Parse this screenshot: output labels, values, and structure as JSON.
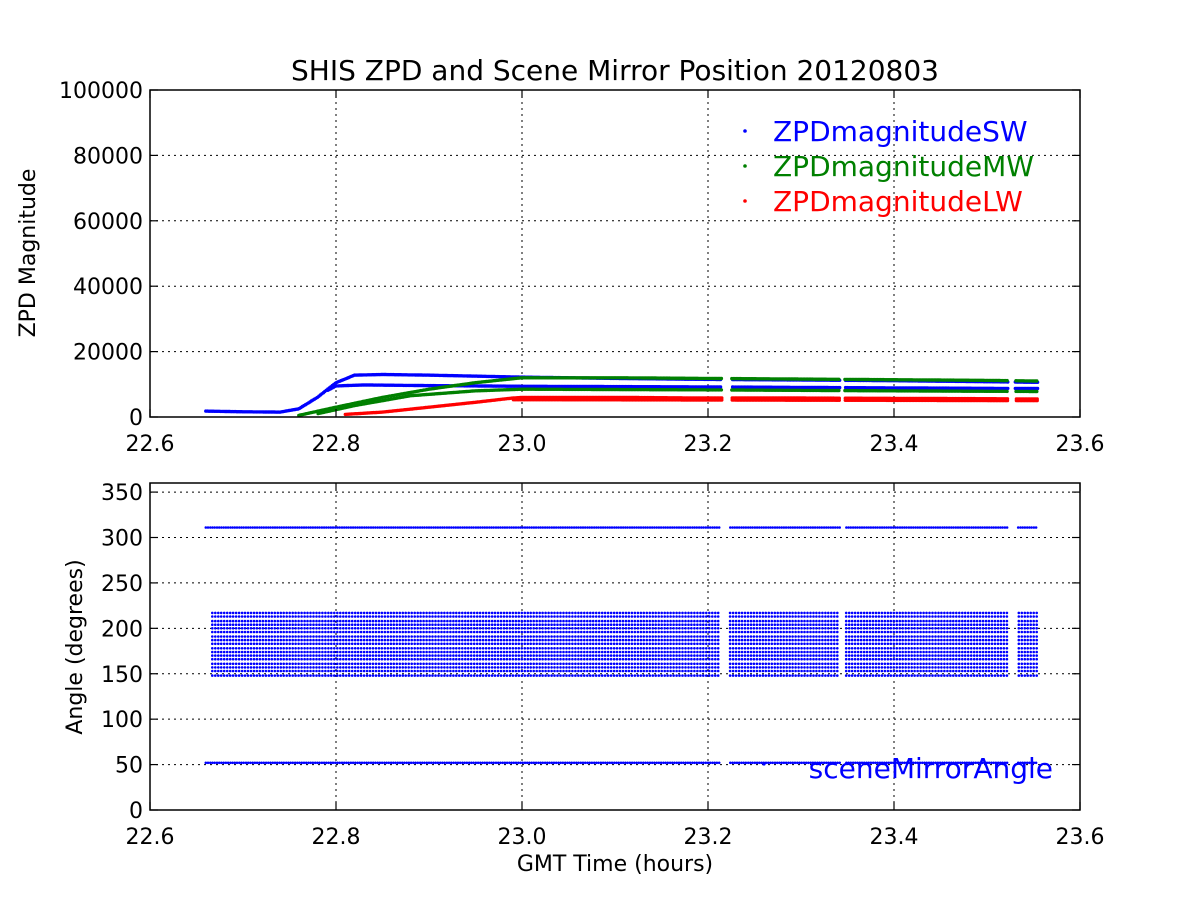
{
  "figure": {
    "title": "SHIS ZPD and Scene Mirror Position 20120803"
  },
  "chart_data": [
    {
      "type": "scatter",
      "title": "SHIS ZPD and Scene Mirror Position 20120803",
      "xlabel": "",
      "ylabel": "ZPD Magnitude",
      "xlim": [
        22.6,
        23.6
      ],
      "ylim": [
        0,
        100000
      ],
      "x_ticks": [
        "22.6",
        "22.8",
        "23.0",
        "23.2",
        "23.4",
        "23.6"
      ],
      "y_ticks": [
        "0",
        "20000",
        "40000",
        "60000",
        "80000",
        "100000"
      ],
      "grid": true,
      "legend_placement": "top-right",
      "x_gaps": [
        [
          23.215,
          23.225
        ],
        [
          23.342,
          23.347
        ],
        [
          23.523,
          23.53
        ]
      ],
      "series": [
        {
          "name": "ZPDmagnitudeSW",
          "color": "#0000ff",
          "x": [
            22.66,
            22.7,
            22.74,
            22.76,
            22.78,
            22.8,
            22.82,
            22.85,
            22.9,
            22.95,
            23.0,
            23.1,
            23.2,
            23.3,
            23.4,
            23.5,
            23.555
          ],
          "y": [
            1800,
            1600,
            1500,
            2500,
            6000,
            10500,
            12800,
            13000,
            12800,
            12500,
            12200,
            11800,
            11500,
            11300,
            11100,
            10800,
            10600
          ],
          "lower_x": [
            22.79,
            22.8,
            22.83,
            22.9,
            23.0,
            23.2,
            23.4,
            23.555
          ],
          "lower_y": [
            8000,
            9500,
            9800,
            9600,
            9400,
            9200,
            8900,
            8700
          ]
        },
        {
          "name": "ZPDmagnitudeMW",
          "color": "#008000",
          "x": [
            22.76,
            22.8,
            22.85,
            22.9,
            22.95,
            23.0,
            23.1,
            23.2,
            23.3,
            23.4,
            23.5,
            23.555
          ],
          "y": [
            500,
            3000,
            6000,
            8500,
            10500,
            12000,
            12000,
            11800,
            11600,
            11400,
            11200,
            11000
          ],
          "lower_x": [
            22.78,
            22.82,
            22.88,
            22.95,
            23.0,
            23.2,
            23.4,
            23.555
          ],
          "lower_y": [
            1000,
            3500,
            6500,
            8000,
            8500,
            8300,
            8000,
            7800
          ]
        },
        {
          "name": "ZPDmagnitudeLW",
          "color": "#ff0000",
          "x": [
            22.81,
            22.85,
            22.9,
            22.95,
            22.99,
            23.0,
            23.1,
            23.2,
            23.3,
            23.4,
            23.5,
            23.555
          ],
          "y": [
            800,
            1500,
            3000,
            4500,
            5800,
            6000,
            6000,
            5800,
            5800,
            5700,
            5600,
            5500
          ],
          "lower_x": [
            22.99,
            23.2,
            23.555
          ],
          "lower_y": [
            5300,
            5200,
            5000
          ]
        }
      ]
    },
    {
      "type": "scatter",
      "title": "",
      "xlabel": "GMT Time (hours)",
      "ylabel": "Angle (degrees)",
      "xlim": [
        22.6,
        23.6
      ],
      "ylim": [
        0,
        360
      ],
      "x_ticks": [
        "22.6",
        "22.8",
        "23.0",
        "23.2",
        "23.4",
        "23.6"
      ],
      "y_ticks": [
        "0",
        "50",
        "100",
        "150",
        "200",
        "250",
        "300",
        "350"
      ],
      "grid": true,
      "legend_placement": "lower-right",
      "x_range": [
        22.655,
        23.555
      ],
      "x_gaps": [
        [
          23.213,
          23.222
        ],
        [
          23.342,
          23.347
        ],
        [
          23.524,
          23.532
        ]
      ],
      "series": [
        {
          "name": "sceneMirrorAngle",
          "color": "#0000ff",
          "levels": [
            311,
            217,
            213,
            208,
            204,
            200,
            196,
            191,
            187,
            183,
            178,
            174,
            170,
            166,
            161,
            157,
            153,
            148,
            52
          ],
          "dense_range": [
            148,
            217
          ]
        }
      ]
    }
  ]
}
